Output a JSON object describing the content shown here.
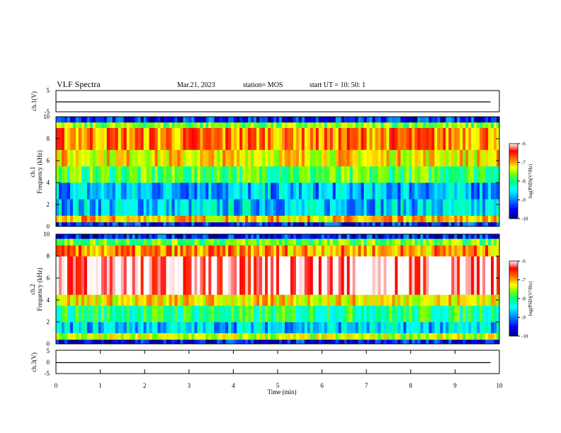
{
  "header": {
    "title": "VLF Spectra",
    "date": "Mar.21, 2023",
    "station": "station= MOS",
    "start": "start  UT =  10: 50: 1"
  },
  "colors": {
    "colormap": [
      "#000080",
      "#0000ff",
      "#0080ff",
      "#00ffff",
      "#00ff80",
      "#80ff00",
      "#ffff00",
      "#ff8000",
      "#ff0000",
      "#ffffff"
    ]
  },
  "chart_data": [
    {
      "type": "line",
      "panel": "ch1-voltage",
      "ylabel": "ch.1(V)",
      "ylim": [
        -5,
        5
      ],
      "yticks": [
        "5",
        "-5"
      ],
      "xlim": [
        0,
        10
      ],
      "series": [
        {
          "x": [
            0,
            9.8
          ],
          "values": [
            0,
            0
          ]
        }
      ]
    },
    {
      "type": "heatmap",
      "panel": "ch1-spectrogram",
      "ylabel": "Frequency (kHz)",
      "channel_label": "ch.1",
      "ylim": [
        0,
        10
      ],
      "yticks": [
        "0",
        "2",
        "4",
        "6",
        "8",
        "10"
      ],
      "xlim": [
        0,
        10
      ],
      "bands": [
        {
          "from": 0,
          "to": 0.4,
          "level": -9.5
        },
        {
          "from": 0.4,
          "to": 1.0,
          "level": -7.2
        },
        {
          "from": 1.0,
          "to": 2.5,
          "level": -8.8
        },
        {
          "from": 2.5,
          "to": 4.0,
          "level": -8.9
        },
        {
          "from": 4.0,
          "to": 5.5,
          "level": -8.0
        },
        {
          "from": 5.5,
          "to": 7.0,
          "level": -7.3
        },
        {
          "from": 7.0,
          "to": 9.0,
          "level": -6.9
        },
        {
          "from": 9.0,
          "to": 9.5,
          "level": -7.8
        },
        {
          "from": 9.5,
          "to": 10,
          "level": -9.5
        }
      ],
      "colorbar": {
        "label": "log(PSD)(V²/Hz)",
        "range": [
          -10,
          -6
        ],
        "ticks": [
          "-6",
          "-7",
          "-8",
          "-9",
          "-10"
        ]
      }
    },
    {
      "type": "heatmap",
      "panel": "ch2-spectrogram",
      "ylabel": "Frequency (kHz)",
      "channel_label": "ch.2",
      "ylim": [
        0,
        10
      ],
      "yticks": [
        "0",
        "2",
        "4",
        "6",
        "8",
        "10"
      ],
      "xlim": [
        0,
        10
      ],
      "bands": [
        {
          "from": 0,
          "to": 0.4,
          "level": -9.6
        },
        {
          "from": 0.4,
          "to": 1.0,
          "level": -7.6
        },
        {
          "from": 1.0,
          "to": 2.0,
          "level": -8.8
        },
        {
          "from": 2.0,
          "to": 3.5,
          "level": -8.2
        },
        {
          "from": 3.5,
          "to": 4.5,
          "level": -7.3
        },
        {
          "from": 4.5,
          "to": 8.0,
          "level": -6.1
        },
        {
          "from": 8.0,
          "to": 9.0,
          "level": -7.0
        },
        {
          "from": 9.0,
          "to": 9.6,
          "level": -7.9
        },
        {
          "from": 9.6,
          "to": 10,
          "level": -9.5
        }
      ],
      "colorbar": {
        "label": "log(PSD)(V²/Hz)",
        "range": [
          -10,
          -6
        ],
        "ticks": [
          "-6",
          "-7",
          "-8",
          "-9",
          "-10"
        ]
      }
    },
    {
      "type": "line",
      "panel": "ch3-voltage",
      "ylabel": "ch.3(V)",
      "ylim": [
        -5,
        5
      ],
      "yticks": [
        "5",
        "0",
        "-5"
      ],
      "xlim": [
        0,
        10
      ],
      "xlabel": "Time  (min)",
      "xticks": [
        "0",
        "1",
        "2",
        "3",
        "4",
        "5",
        "6",
        "7",
        "8",
        "9",
        "10"
      ],
      "series": [
        {
          "x": [
            0,
            9.8
          ],
          "values": [
            0,
            0
          ]
        }
      ]
    }
  ]
}
